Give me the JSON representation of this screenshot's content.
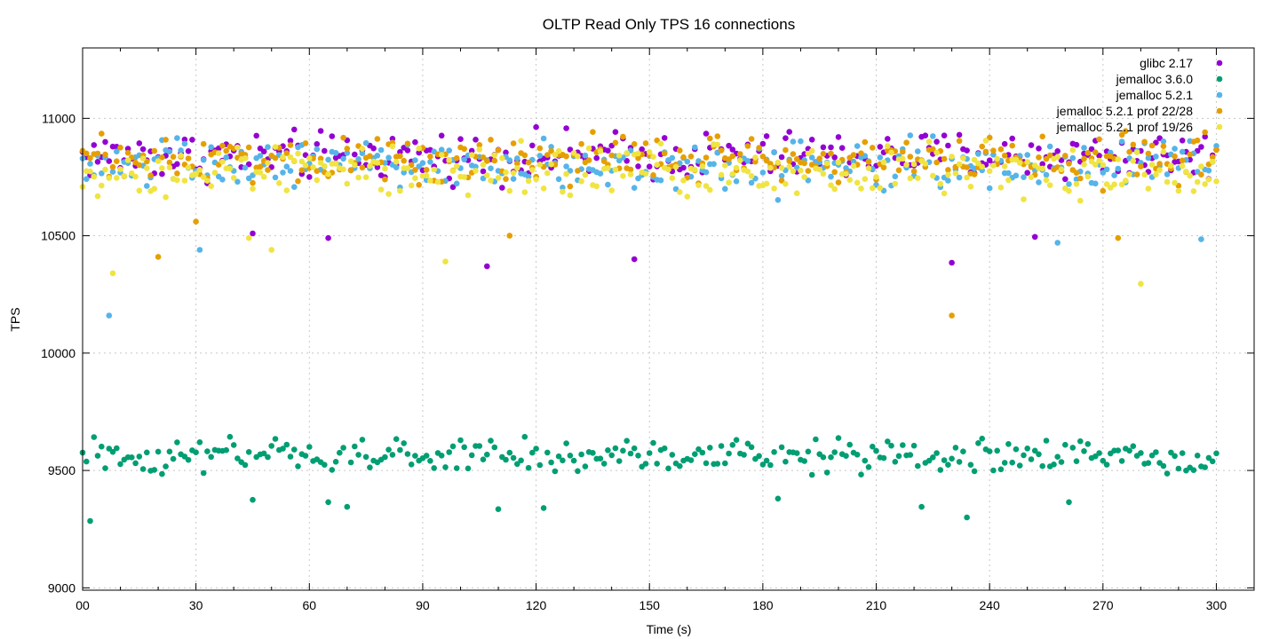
{
  "chart_data": {
    "type": "scatter",
    "title": "OLTP Read Only TPS 16 connections",
    "xlabel": "Time (s)",
    "ylabel": "TPS",
    "xlim": [
      0,
      310
    ],
    "ylim": [
      8990,
      11300
    ],
    "xticks": [
      0,
      30,
      60,
      90,
      120,
      150,
      180,
      210,
      240,
      270,
      300
    ],
    "xtick_labels": [
      "00",
      "30",
      "60",
      "90",
      "120",
      "150",
      "180",
      "210",
      "240",
      "270",
      "300"
    ],
    "yticks": [
      9000,
      9500,
      10000,
      10500,
      11000
    ],
    "yticks_minor_x": [
      10,
      20,
      40,
      50,
      70,
      80,
      100,
      110,
      130,
      140,
      160,
      170,
      190,
      200,
      220,
      230,
      250,
      260,
      280,
      290
    ],
    "grid": true,
    "legend_position": "top-right",
    "series": [
      {
        "name": "glibc 2.17",
        "color": "#9400d3",
        "y_center": 10840,
        "y_spread": 150,
        "outliers": [
          [
            45,
            10510
          ],
          [
            65,
            10490
          ],
          [
            107,
            10370
          ],
          [
            146,
            10400
          ],
          [
            230,
            10385
          ],
          [
            252,
            10495
          ]
        ]
      },
      {
        "name": "jemalloc 3.6.0",
        "color": "#009e73",
        "y_center": 9560,
        "y_spread": 110,
        "outliers": [
          [
            2,
            9285
          ],
          [
            45,
            9375
          ],
          [
            65,
            9365
          ],
          [
            70,
            9345
          ],
          [
            110,
            9335
          ],
          [
            122,
            9340
          ],
          [
            184,
            9380
          ],
          [
            222,
            9345
          ],
          [
            234,
            9300
          ],
          [
            261,
            9365
          ]
        ]
      },
      {
        "name": "jemalloc 5.2.1",
        "color": "#56b4e9",
        "y_center": 10800,
        "y_spread": 160,
        "outliers": [
          [
            7,
            10160
          ],
          [
            31,
            10440
          ],
          [
            258,
            10470
          ],
          [
            296,
            10485
          ]
        ]
      },
      {
        "name": "jemalloc 5.2.1 prof 22/28",
        "color": "#e69f00",
        "y_center": 10830,
        "y_spread": 150,
        "outliers": [
          [
            20,
            10410
          ],
          [
            30,
            10560
          ],
          [
            113,
            10500
          ],
          [
            230,
            10160
          ],
          [
            274,
            10490
          ]
        ]
      },
      {
        "name": "jemalloc 5.2.1 prof 19/26",
        "color": "#f0e442",
        "y_center": 10780,
        "y_spread": 170,
        "outliers": [
          [
            8,
            10340
          ],
          [
            44,
            10490
          ],
          [
            50,
            10440
          ],
          [
            96,
            10390
          ],
          [
            280,
            10295
          ]
        ]
      }
    ],
    "x_range": [
      0,
      300
    ],
    "sample_interval": 1
  }
}
